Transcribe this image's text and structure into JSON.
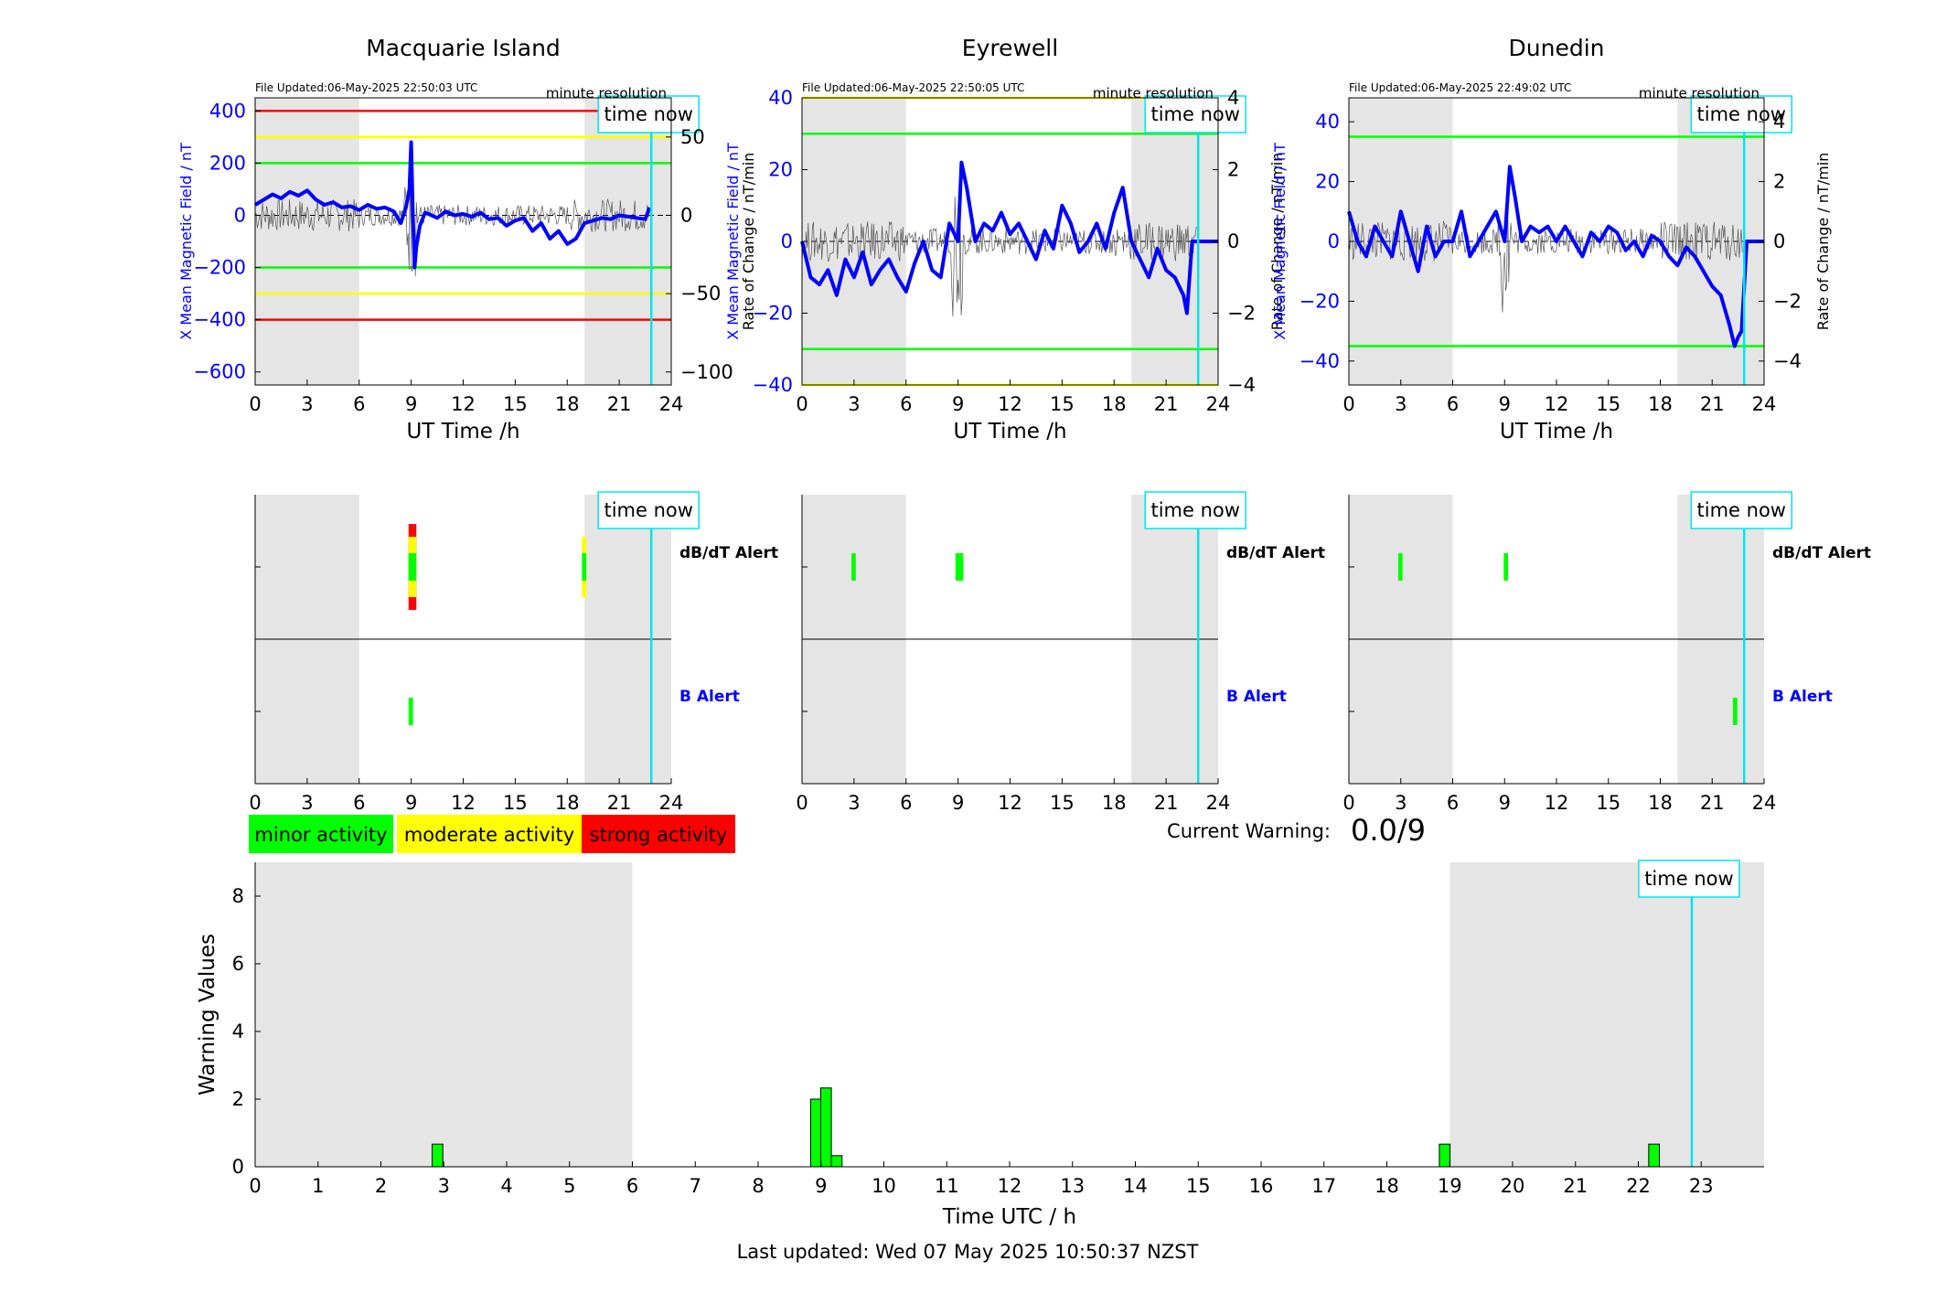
{
  "colors": {
    "blue": "#0000ff",
    "cyan": "#00e5ee",
    "shade": "#e5e5e5",
    "red": "#ff0000",
    "yellow": "#ffff00",
    "green": "#00ff00"
  },
  "time_now_label": "time now",
  "legend": {
    "minor": "minor activity",
    "moderate": "moderate activity",
    "strong": "strong activity"
  },
  "current_warning": {
    "label": "Current Warning:",
    "value": "0.0/9"
  },
  "footer": "Last updated: Wed 07 May 2025 10:50:37 NZST",
  "chart_data": [
    {
      "type": "line",
      "title": "Macquarie Island",
      "file_updated": "File Updated:06-May-2025 22:50:03 UTC",
      "resolution": "minute resolution",
      "xlabel": "UT Time /h",
      "ylabel": "X Mean Magnetic Field / nT",
      "ylabel_right": "Rate of Change / nT/min",
      "xlim": [
        0,
        24
      ],
      "ylim": [
        -650,
        450
      ],
      "ylim_right": [
        -108.3,
        75
      ],
      "xticks": [
        0,
        3,
        6,
        9,
        12,
        15,
        18,
        21,
        24
      ],
      "yticks": [
        -600,
        -400,
        -200,
        0,
        200,
        400
      ],
      "yticks_right": [
        -100,
        -50,
        0,
        50
      ],
      "night_shading": [
        [
          0,
          6
        ],
        [
          19,
          24
        ]
      ],
      "time_now": 22.85,
      "thresholds": [
        {
          "value": 400,
          "color": "red"
        },
        {
          "value": 300,
          "color": "yellow"
        },
        {
          "value": 200,
          "color": "green"
        },
        {
          "value": -200,
          "color": "green"
        },
        {
          "value": -300,
          "color": "yellow"
        },
        {
          "value": -400,
          "color": "red"
        }
      ],
      "series": [
        {
          "color": "blue",
          "x": [
            0,
            0.5,
            1,
            1.5,
            2,
            2.5,
            3,
            3.5,
            4,
            4.5,
            5,
            5.5,
            6,
            6.5,
            7,
            7.5,
            8,
            8.4,
            8.7,
            8.9,
            9.0,
            9.1,
            9.2,
            9.3,
            9.5,
            9.8,
            10,
            10.5,
            11,
            11.5,
            12,
            12.5,
            13,
            13.5,
            14,
            14.5,
            15,
            15.5,
            16,
            16.5,
            17,
            17.5,
            18,
            18.5,
            19,
            19.5,
            20,
            20.5,
            21,
            21.5,
            22,
            22.5,
            22.75
          ],
          "y": [
            40,
            60,
            80,
            65,
            90,
            75,
            95,
            60,
            40,
            50,
            30,
            35,
            20,
            40,
            25,
            30,
            15,
            -30,
            30,
            100,
            280,
            0,
            -200,
            -120,
            -40,
            10,
            5,
            -10,
            15,
            0,
            5,
            -5,
            10,
            -15,
            -10,
            -40,
            -20,
            -10,
            -60,
            -30,
            -90,
            -60,
            -110,
            -90,
            -30,
            -20,
            -10,
            -15,
            0,
            -5,
            -10,
            -15,
            30
          ]
        }
      ]
    },
    {
      "type": "line",
      "title": "Eyrewell",
      "file_updated": "File Updated:06-May-2025 22:50:05 UTC",
      "resolution": "minute resolution",
      "xlabel": "UT Time /h",
      "ylabel": "X Mean Magnetic Field / nT",
      "ylabel_right": "Rate of Change / nT/min",
      "xlim": [
        0,
        24
      ],
      "ylim": [
        -40,
        40
      ],
      "ylim_right": [
        -4,
        4
      ],
      "xticks": [
        0,
        3,
        6,
        9,
        12,
        15,
        18,
        21,
        24
      ],
      "yticks": [
        -40,
        -20,
        0,
        20,
        40
      ],
      "yticks_right": [
        -4,
        -2,
        0,
        2,
        4
      ],
      "night_shading": [
        [
          0,
          6
        ],
        [
          19,
          24
        ]
      ],
      "time_now": 22.85,
      "thresholds": [
        {
          "value": 40,
          "color": "yellow"
        },
        {
          "value": 30,
          "color": "green"
        },
        {
          "value": -30,
          "color": "green"
        },
        {
          "value": -40,
          "color": "yellow"
        }
      ],
      "series": [
        {
          "color": "blue",
          "x": [
            0,
            0.5,
            1,
            1.5,
            2,
            2.5,
            3,
            3.5,
            4,
            4.5,
            5,
            5.5,
            6,
            6.5,
            7,
            7.5,
            8,
            8.5,
            9,
            9.2,
            9.5,
            10,
            10.5,
            11,
            11.5,
            12,
            12.5,
            13,
            13.5,
            14,
            14.5,
            15,
            15.5,
            16,
            16.5,
            17,
            17.5,
            18,
            18.5,
            19,
            19.5,
            20,
            20.5,
            21,
            21.5,
            22,
            22.2,
            22.5,
            23,
            24
          ],
          "y": [
            0,
            -10,
            -12,
            -8,
            -15,
            -5,
            -10,
            -3,
            -12,
            -8,
            -5,
            -10,
            -14,
            -6,
            0,
            -8,
            -10,
            5,
            0,
            22,
            15,
            0,
            5,
            3,
            8,
            2,
            5,
            0,
            -5,
            3,
            -2,
            10,
            5,
            -3,
            0,
            5,
            -2,
            8,
            15,
            0,
            -5,
            -10,
            -2,
            -8,
            -10,
            -15,
            -20,
            0,
            0,
            0
          ]
        }
      ]
    },
    {
      "type": "line",
      "title": "Dunedin",
      "file_updated": "File Updated:06-May-2025 22:49:02 UTC",
      "resolution": "minute resolution",
      "xlabel": "UT Time /h",
      "ylabel": "X Mean Magnetic Field / nT",
      "ylabel_right": "Rate of Change / nT/min",
      "xlim": [
        0,
        24
      ],
      "ylim": [
        -48,
        48
      ],
      "ylim_right": [
        -4.8,
        4.8
      ],
      "xticks": [
        0,
        3,
        6,
        9,
        12,
        15,
        18,
        21,
        24
      ],
      "yticks": [
        -40,
        -20,
        0,
        20,
        40
      ],
      "yticks_right": [
        -4,
        -2,
        0,
        2,
        4
      ],
      "night_shading": [
        [
          0,
          6
        ],
        [
          19,
          24
        ]
      ],
      "time_now": 22.85,
      "thresholds": [
        {
          "value": 35,
          "color": "green"
        },
        {
          "value": -35,
          "color": "green"
        }
      ],
      "series": [
        {
          "color": "blue",
          "x": [
            0,
            0.5,
            1,
            1.5,
            2,
            2.5,
            3,
            3.5,
            4,
            4.5,
            5,
            5.5,
            6,
            6.5,
            7,
            7.5,
            8,
            8.5,
            9,
            9.3,
            9.6,
            10,
            10.5,
            11,
            11.5,
            12,
            12.5,
            13,
            13.5,
            14,
            14.5,
            15,
            15.5,
            16,
            16.5,
            17,
            17.5,
            18,
            18.5,
            19,
            19.5,
            20,
            20.5,
            21,
            21.5,
            22,
            22.3,
            22.5,
            22.7,
            23,
            24
          ],
          "y": [
            10,
            0,
            -5,
            5,
            0,
            -5,
            10,
            0,
            -10,
            5,
            -5,
            0,
            0,
            10,
            -5,
            0,
            5,
            10,
            0,
            25,
            15,
            0,
            5,
            3,
            5,
            0,
            5,
            0,
            -5,
            3,
            0,
            5,
            3,
            -3,
            0,
            -5,
            2,
            0,
            -5,
            -8,
            -2,
            -5,
            -10,
            -15,
            -18,
            -28,
            -35,
            -32,
            -30,
            0,
            0
          ]
        }
      ]
    },
    {
      "type": "heatmap",
      "title": "",
      "xlim": [
        0,
        24
      ],
      "xticks": [
        0,
        3,
        6,
        9,
        12,
        15,
        18,
        21,
        24
      ],
      "row_labels": [
        "dB/dT Alert",
        "B Alert"
      ],
      "night_shading": [
        [
          0,
          6
        ],
        [
          19,
          24
        ]
      ],
      "time_now": 22.85,
      "dbdt_alerts": [
        {
          "start": 8.85,
          "end": 9.3,
          "level": "strong"
        },
        {
          "start": 18.85,
          "end": 19.1,
          "level": "moderate"
        }
      ],
      "b_alerts": [
        {
          "start": 8.85,
          "end": 9.1,
          "level": "minor"
        }
      ]
    },
    {
      "type": "heatmap",
      "title": "",
      "xlim": [
        0,
        24
      ],
      "xticks": [
        0,
        3,
        6,
        9,
        12,
        15,
        18,
        21,
        24
      ],
      "row_labels": [
        "dB/dT Alert",
        "B Alert"
      ],
      "night_shading": [
        [
          0,
          6
        ],
        [
          19,
          24
        ]
      ],
      "time_now": 22.85,
      "dbdt_alerts": [
        {
          "start": 2.85,
          "end": 3.1,
          "level": "minor"
        },
        {
          "start": 8.85,
          "end": 9.3,
          "level": "minor"
        }
      ],
      "b_alerts": []
    },
    {
      "type": "heatmap",
      "title": "",
      "xlim": [
        0,
        24
      ],
      "xticks": [
        0,
        3,
        6,
        9,
        12,
        15,
        18,
        21,
        24
      ],
      "row_labels": [
        "dB/dT Alert",
        "B Alert"
      ],
      "night_shading": [
        [
          0,
          6
        ],
        [
          19,
          24
        ]
      ],
      "time_now": 22.85,
      "dbdt_alerts": [
        {
          "start": 2.85,
          "end": 3.1,
          "level": "minor"
        },
        {
          "start": 8.95,
          "end": 9.2,
          "level": "minor"
        }
      ],
      "b_alerts": [
        {
          "start": 22.2,
          "end": 22.45,
          "level": "minor"
        }
      ]
    },
    {
      "type": "bar",
      "title": "",
      "xlabel": "Time UTC / h",
      "ylabel": "Warning Values",
      "xlim": [
        0,
        24
      ],
      "ylim": [
        0,
        9
      ],
      "xticks": [
        0,
        1,
        2,
        3,
        4,
        5,
        6,
        7,
        8,
        9,
        10,
        11,
        12,
        13,
        14,
        15,
        16,
        17,
        18,
        19,
        20,
        21,
        22,
        23
      ],
      "yticks": [
        0,
        2,
        4,
        6,
        8
      ],
      "night_shading": [
        [
          0,
          6
        ],
        [
          19,
          24
        ]
      ],
      "time_now": 22.85,
      "bar_width": 0.17,
      "bars": [
        {
          "x": 2.9,
          "value": 0.67
        },
        {
          "x": 8.92,
          "value": 2.0
        },
        {
          "x": 9.08,
          "value": 2.33
        },
        {
          "x": 9.25,
          "value": 0.33
        },
        {
          "x": 18.92,
          "value": 0.67
        },
        {
          "x": 22.25,
          "value": 0.67
        }
      ]
    }
  ]
}
